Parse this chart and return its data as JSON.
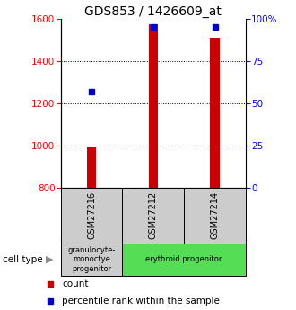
{
  "title": "GDS853 / 1426609_at",
  "samples": [
    "GSM27216",
    "GSM27212",
    "GSM27214"
  ],
  "counts": [
    990,
    1575,
    1510
  ],
  "percentile_ranks": [
    57,
    95,
    95
  ],
  "y_min": 800,
  "y_max": 1600,
  "y_ticks_left": [
    800,
    1000,
    1200,
    1400,
    1600
  ],
  "y_ticks_right": [
    0,
    25,
    50,
    75,
    100
  ],
  "bar_color": "#cc0000",
  "dot_color": "#0000cc",
  "cell_type_groups": [
    {
      "start": 0,
      "end": 1,
      "label": "granulocyte-\nmonoctye\nprogenitor",
      "color": "#cccccc"
    },
    {
      "start": 1,
      "end": 3,
      "label": "erythroid progenitor",
      "color": "#55dd55"
    }
  ],
  "bar_width": 0.15,
  "title_fontsize": 10,
  "tick_fontsize": 7.5,
  "legend_fontsize": 7.5
}
